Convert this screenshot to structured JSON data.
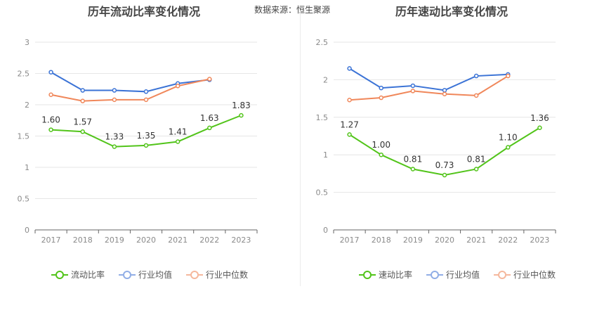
{
  "source": "数据来源：恒生聚源",
  "colors": {
    "primary": "#52c41a",
    "industry_avg": "#3b73d6",
    "industry_median": "#f0875a",
    "legend_avg": "#91aee6",
    "legend_median": "#f5b89d"
  },
  "legend": [
    "流动比率",
    "行业均值",
    "行业中位数"
  ],
  "legend_right": [
    "速动比率",
    "行业均值",
    "行业中位数"
  ],
  "chart_data": [
    {
      "type": "line",
      "title": "历年流动比率变化情况",
      "categories": [
        "2017",
        "2018",
        "2019",
        "2020",
        "2021",
        "2022",
        "2023"
      ],
      "ylim": [
        0,
        3
      ],
      "yticks": [
        "0",
        "0.5",
        "1",
        "1.5",
        "2",
        "2.5",
        "3"
      ],
      "grid": true,
      "legend_position": "bottom",
      "series": [
        {
          "name": "流动比率",
          "values": [
            1.6,
            1.57,
            1.33,
            1.35,
            1.41,
            1.63,
            1.83
          ],
          "labels": [
            "1.60",
            "1.57",
            "1.33",
            "1.35",
            "1.41",
            "1.63",
            "1.83"
          ]
        },
        {
          "name": "行业均值",
          "values": [
            2.52,
            2.23,
            2.23,
            2.21,
            2.34,
            2.4,
            null
          ]
        },
        {
          "name": "行业中位数",
          "values": [
            2.16,
            2.06,
            2.08,
            2.08,
            2.3,
            2.41,
            null
          ]
        }
      ]
    },
    {
      "type": "line",
      "title": "历年速动比率变化情况",
      "categories": [
        "2017",
        "2018",
        "2019",
        "2020",
        "2021",
        "2022",
        "2023"
      ],
      "ylim": [
        0,
        2.5
      ],
      "yticks": [
        "0",
        "0.5",
        "1",
        "1.5",
        "2",
        "2.5"
      ],
      "grid": true,
      "legend_position": "bottom",
      "series": [
        {
          "name": "速动比率",
          "values": [
            1.27,
            1.0,
            0.81,
            0.73,
            0.81,
            1.1,
            1.36
          ],
          "labels": [
            "1.27",
            "1.00",
            "0.81",
            "0.73",
            "0.81",
            "1.10",
            "1.36"
          ]
        },
        {
          "name": "行业均值",
          "values": [
            2.15,
            1.89,
            1.92,
            1.86,
            2.05,
            2.07,
            null
          ]
        },
        {
          "name": "行业中位数",
          "values": [
            1.73,
            1.76,
            1.85,
            1.81,
            1.79,
            2.05,
            null
          ]
        }
      ]
    }
  ]
}
